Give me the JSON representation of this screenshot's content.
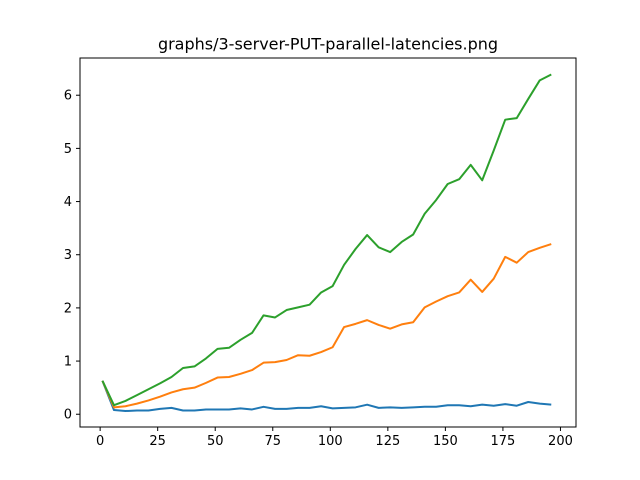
{
  "chart_data": {
    "type": "line",
    "title": "graphs/3-server-PUT-parallel-latencies.png",
    "xlabel": "",
    "ylabel": "",
    "xlim": [
      -8.75,
      206.75
    ],
    "ylim": [
      -0.24,
      6.7
    ],
    "x_ticks": [
      0,
      25,
      50,
      75,
      100,
      125,
      150,
      175,
      200
    ],
    "x_tick_labels": [
      "0",
      "25",
      "50",
      "75",
      "100",
      "125",
      "150",
      "175",
      "200"
    ],
    "y_ticks": [
      0,
      1,
      2,
      3,
      4,
      5,
      6
    ],
    "y_tick_labels": [
      "0",
      "1",
      "2",
      "3",
      "4",
      "5",
      "6"
    ],
    "grid": false,
    "legend": "none",
    "x": [
      1,
      6,
      11,
      16,
      21,
      26,
      31,
      36,
      41,
      46,
      51,
      56,
      61,
      66,
      71,
      76,
      81,
      86,
      91,
      96,
      101,
      106,
      111,
      116,
      121,
      126,
      131,
      136,
      141,
      146,
      151,
      156,
      161,
      166,
      171,
      176,
      181,
      186,
      191,
      196
    ],
    "series": [
      {
        "color": "#1f77b4",
        "values": [
          0.63,
          0.08,
          0.06,
          0.07,
          0.07,
          0.1,
          0.12,
          0.07,
          0.07,
          0.09,
          0.09,
          0.09,
          0.11,
          0.09,
          0.14,
          0.1,
          0.1,
          0.12,
          0.12,
          0.15,
          0.11,
          0.12,
          0.13,
          0.18,
          0.12,
          0.13,
          0.12,
          0.13,
          0.14,
          0.14,
          0.17,
          0.17,
          0.15,
          0.18,
          0.16,
          0.19,
          0.16,
          0.23,
          0.2,
          0.18
        ]
      },
      {
        "color": "#ff7f0e",
        "values": [
          0.63,
          0.13,
          0.15,
          0.2,
          0.26,
          0.33,
          0.41,
          0.47,
          0.5,
          0.59,
          0.69,
          0.7,
          0.76,
          0.83,
          0.97,
          0.98,
          1.02,
          1.11,
          1.1,
          1.17,
          1.26,
          1.64,
          1.7,
          1.77,
          1.68,
          1.61,
          1.69,
          1.73,
          2.01,
          2.12,
          2.22,
          2.29,
          2.53,
          2.3,
          2.55,
          2.96,
          2.85,
          3.05,
          3.13,
          3.2
        ]
      },
      {
        "color": "#2ca02c",
        "values": [
          0.63,
          0.17,
          0.25,
          0.36,
          0.47,
          0.58,
          0.7,
          0.87,
          0.9,
          1.05,
          1.23,
          1.25,
          1.4,
          1.53,
          1.86,
          1.82,
          1.96,
          2.01,
          2.06,
          2.29,
          2.41,
          2.81,
          3.11,
          3.37,
          3.14,
          3.05,
          3.24,
          3.38,
          3.77,
          4.03,
          4.33,
          4.42,
          4.69,
          4.4,
          4.96,
          5.54,
          5.57,
          5.93,
          6.28,
          6.39
        ]
      }
    ]
  }
}
